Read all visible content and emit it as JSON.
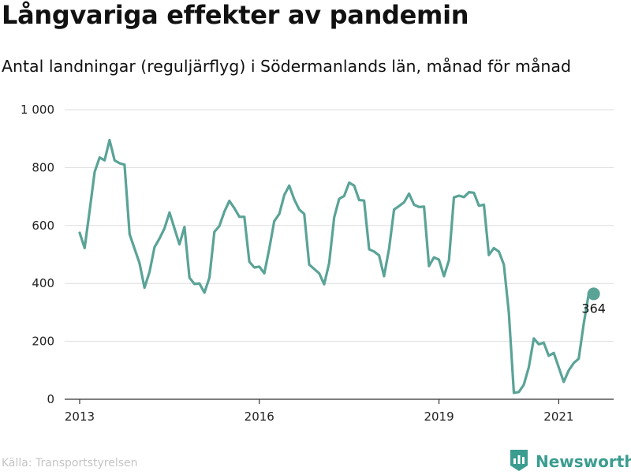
{
  "header": {
    "title": "Långvariga effekter av pandemin",
    "subtitle": "Antal landningar (reguljärflyg) i Södermanlands län, månad för månad"
  },
  "footer": {
    "source": "Källa: Transportstyrelsen",
    "brand": "Newsworthy",
    "brand_icon": "newsworthy-logo-icon"
  },
  "colors": {
    "line": "#5aa397",
    "grid": "#dddddd",
    "axis": "#333333",
    "brand": "#3a9d8f"
  },
  "chart_data": {
    "type": "line",
    "title": "Långvariga effekter av pandemin",
    "subtitle": "Antal landningar (reguljärflyg) i Södermanlands län, månad för månad",
    "xlabel": "",
    "ylabel": "",
    "x_start": "2013-01",
    "x_ticks": [
      "2013",
      "2016",
      "2019",
      "2021"
    ],
    "xlim": [
      "2012-10",
      "2021-12"
    ],
    "y_ticks": [
      0,
      200,
      400,
      600,
      800,
      1000
    ],
    "y_tick_labels": [
      "0",
      "200",
      "400",
      "600",
      "800",
      "1 000"
    ],
    "ylim": [
      0,
      1000
    ],
    "grid": true,
    "end_label": "364",
    "series": [
      {
        "name": "",
        "x": [
          "2013-01",
          "2013-02",
          "2013-03",
          "2013-04",
          "2013-05",
          "2013-06",
          "2013-07",
          "2013-08",
          "2013-09",
          "2013-10",
          "2013-11",
          "2013-12",
          "2014-01",
          "2014-02",
          "2014-03",
          "2014-04",
          "2014-05",
          "2014-06",
          "2014-07",
          "2014-08",
          "2014-09",
          "2014-10",
          "2014-11",
          "2014-12",
          "2015-01",
          "2015-02",
          "2015-03",
          "2015-04",
          "2015-05",
          "2015-06",
          "2015-07",
          "2015-08",
          "2015-09",
          "2015-10",
          "2015-11",
          "2015-12",
          "2016-01",
          "2016-02",
          "2016-03",
          "2016-04",
          "2016-05",
          "2016-06",
          "2016-07",
          "2016-08",
          "2016-09",
          "2016-10",
          "2016-11",
          "2016-12",
          "2017-01",
          "2017-02",
          "2017-03",
          "2017-04",
          "2017-05",
          "2017-06",
          "2017-07",
          "2017-08",
          "2017-09",
          "2017-10",
          "2017-11",
          "2017-12",
          "2018-01",
          "2018-02",
          "2018-03",
          "2018-04",
          "2018-05",
          "2018-06",
          "2018-07",
          "2018-08",
          "2018-09",
          "2018-10",
          "2018-11",
          "2018-12",
          "2019-01",
          "2019-02",
          "2019-03",
          "2019-04",
          "2019-05",
          "2019-06",
          "2019-07",
          "2019-08",
          "2019-09",
          "2019-10",
          "2019-11",
          "2019-12",
          "2020-01",
          "2020-02",
          "2020-03",
          "2020-04",
          "2020-05",
          "2020-06",
          "2020-07",
          "2020-08",
          "2020-09",
          "2020-10",
          "2020-11",
          "2020-12",
          "2021-01",
          "2021-02",
          "2021-03",
          "2021-04",
          "2021-05",
          "2021-06",
          "2021-07",
          "2021-08"
        ],
        "values": [
          575,
          522,
          650,
          785,
          835,
          825,
          895,
          825,
          815,
          810,
          570,
          520,
          470,
          385,
          440,
          525,
          555,
          590,
          645,
          590,
          535,
          595,
          420,
          398,
          400,
          368,
          420,
          578,
          598,
          648,
          685,
          660,
          630,
          630,
          475,
          455,
          458,
          435,
          520,
          615,
          640,
          705,
          738,
          690,
          655,
          640,
          465,
          450,
          435,
          397,
          470,
          628,
          692,
          702,
          748,
          738,
          688,
          686,
          518,
          510,
          497,
          425,
          520,
          655,
          667,
          680,
          710,
          672,
          664,
          665,
          460,
          490,
          482,
          425,
          480,
          697,
          703,
          698,
          715,
          713,
          668,
          672,
          498,
          522,
          510,
          465,
          300,
          22,
          25,
          50,
          110,
          210,
          190,
          195,
          150,
          160,
          110,
          60,
          100,
          125,
          140,
          260,
          364,
          364
        ]
      }
    ]
  }
}
